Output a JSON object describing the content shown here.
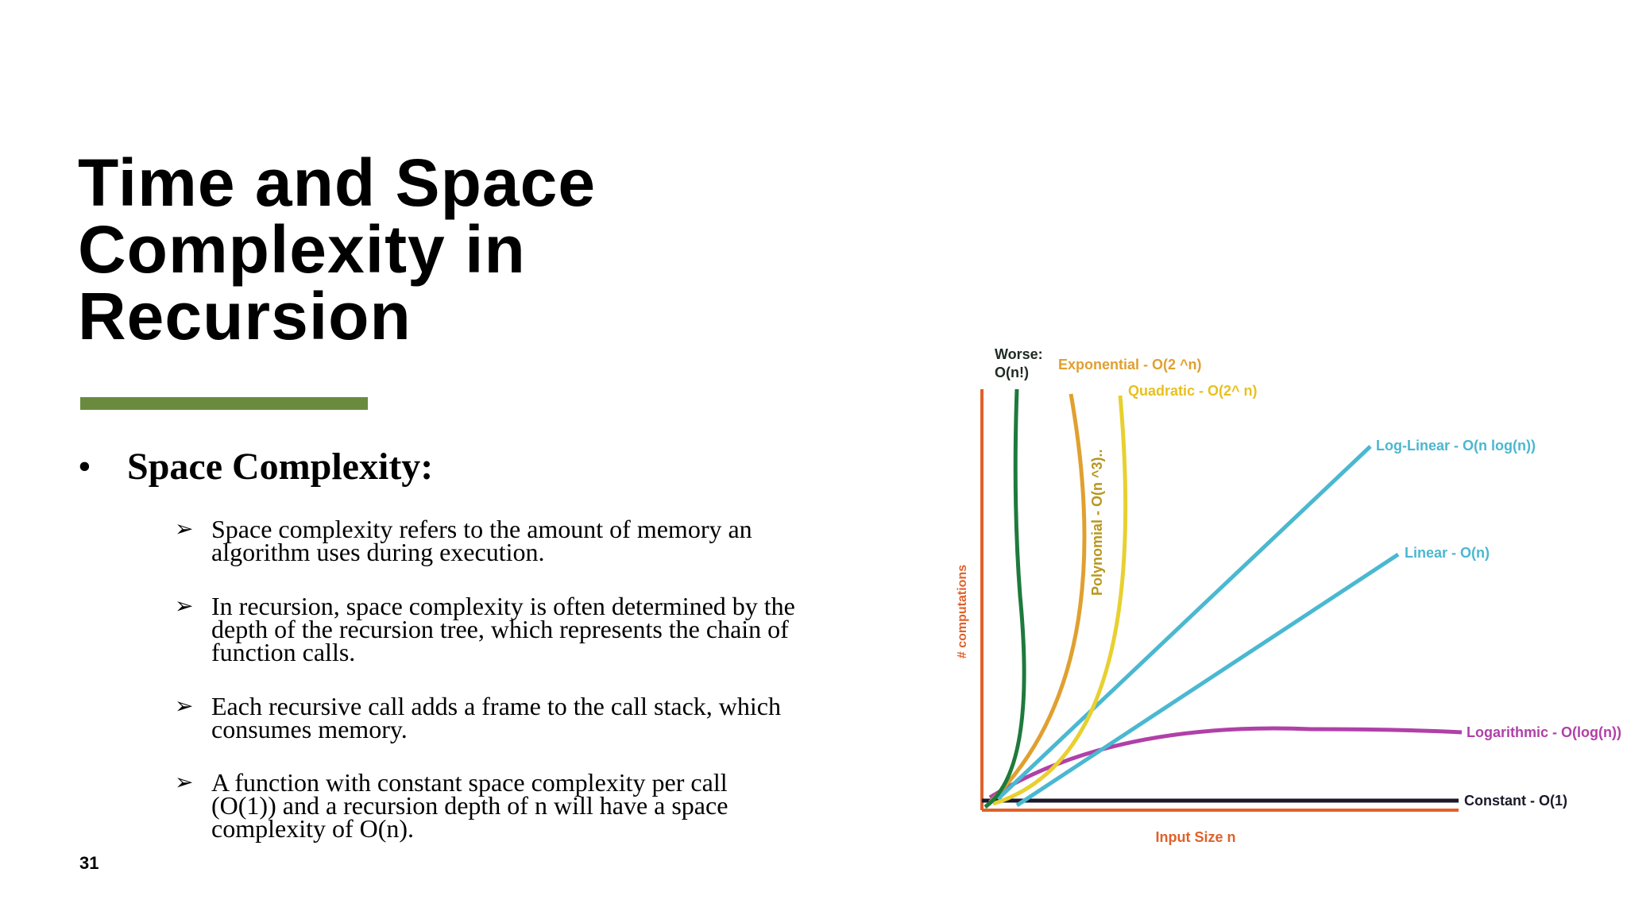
{
  "slide": {
    "title_lines": [
      "Time and Space",
      "Complexity in",
      "Recursion"
    ],
    "section_bullet": "•",
    "section_heading": "Space Complexity:",
    "items": [
      {
        "marker": "➢",
        "lines": [
          "Space complexity refers to the amount of memory an",
          "algorithm uses during execution."
        ]
      },
      {
        "marker": "➢",
        "lines": [
          "In recursion, space complexity is often determined by the",
          "depth of the recursion tree, which represents the chain of",
          "function calls."
        ]
      },
      {
        "marker": "➢",
        "lines": [
          "Each recursive call adds a frame to the call stack, which",
          "consumes memory."
        ]
      },
      {
        "marker": "➢",
        "lines": [
          "A function with constant space complexity per call",
          "(O(1)) and a recursion depth of n will have a space",
          "complexity of O(n)."
        ]
      }
    ],
    "slide_number": "31",
    "accent_color": "#6a8b3e"
  },
  "chart_data": {
    "type": "line",
    "title": "",
    "xlabel": "Input Size n",
    "ylabel": "# computations",
    "axis_color": "#e0602a",
    "series": [
      {
        "name": "Worse: O(n!)",
        "label_lines": [
          "Worse:",
          "O(n!)"
        ],
        "color": "#1e7a3c"
      },
      {
        "name": "Exponential - O(2^n)",
        "label_lines": [
          "Exponential - O(2 ^n)"
        ],
        "color": "#e0a030"
      },
      {
        "name": "Polynomial - O(n^3)..",
        "label_lines": [
          "Polynomial  - O(n ^3).."
        ],
        "color": "#b8961e"
      },
      {
        "name": "Quadratic - O(2^n)",
        "label_lines": [
          "Quadratic - O(2^ n)"
        ],
        "color": "#e8d030"
      },
      {
        "name": "Log-Linear - O(n log(n))",
        "label_lines": [
          "Log-Linear - O(n log(n))"
        ],
        "color": "#4ab8d0"
      },
      {
        "name": "Linear - O(n)",
        "label_lines": [
          "Linear - O(n)"
        ],
        "color": "#4ab8d0"
      },
      {
        "name": "Logarithmic - O(log(n))",
        "label_lines": [
          "Logarithmic - O(log(n))"
        ],
        "color": "#b040a8"
      },
      {
        "name": "Constant - O(1)",
        "label_lines": [
          "Constant - O(1)"
        ],
        "color": "#1a1a2a"
      }
    ]
  }
}
